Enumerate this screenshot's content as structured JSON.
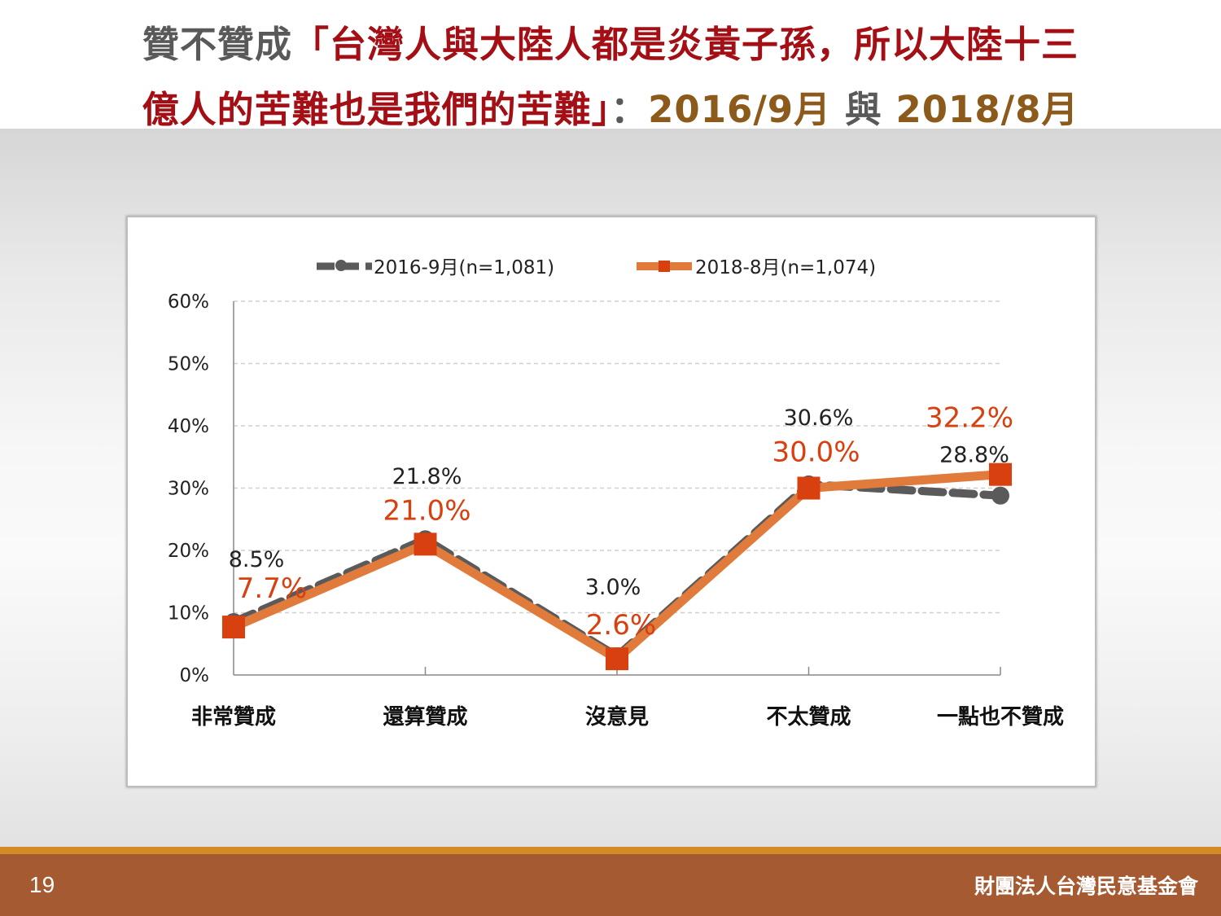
{
  "title": {
    "line1": [
      {
        "text": "贊不贊成",
        "color": "gray"
      },
      {
        "text": "「台灣人與大陸人都是炎黃子孫，所以大陸十三",
        "color": "red"
      }
    ],
    "line2": [
      {
        "text": "億人的苦難也是我們的苦難」",
        "color": "red"
      },
      {
        "text": "：",
        "color": "gray"
      },
      {
        "text": "2016/9月",
        "color": "brown"
      },
      {
        "text": " 與 ",
        "color": "gray"
      },
      {
        "text": "2018/8月",
        "color": "brown"
      }
    ]
  },
  "footer": {
    "page_number": "19",
    "organization": "財團法人台灣民意基金會"
  },
  "colors": {
    "series_2016": "#5a5a5a",
    "series_2018": "#e07b3c",
    "marker_2018": "#d9400f",
    "label_2018": "#d9400f",
    "gridline": "#d0d0d0",
    "footer_bg": "#a55a32",
    "footer_stripe": "#d58b25"
  },
  "chart_data": {
    "type": "line",
    "categories": [
      "非常贊成",
      "還算贊成",
      "沒意見",
      "不太贊成",
      "一點也不贊成"
    ],
    "series": [
      {
        "name": "2016-9月(n=1,081)",
        "values": [
          8.5,
          21.8,
          3.0,
          30.6,
          28.8
        ],
        "labels": [
          "8.5%",
          "21.8%",
          "3.0%",
          "30.6%",
          "28.8%"
        ]
      },
      {
        "name": "2018-8月(n=1,074)",
        "values": [
          7.7,
          21.0,
          2.6,
          30.0,
          32.2
        ],
        "labels": [
          "7.7%",
          "21.0%",
          "2.6%",
          "30.0%",
          "32.2%"
        ]
      }
    ],
    "ylim": [
      0,
      60
    ],
    "yticks": [
      "0%",
      "10%",
      "20%",
      "30%",
      "40%",
      "50%",
      "60%"
    ],
    "grid": true,
    "legend_position": "top"
  }
}
